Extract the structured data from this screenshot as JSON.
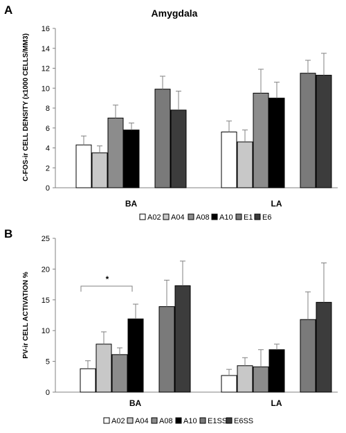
{
  "chart_data": [
    {
      "type": "bar",
      "panel_label": "A",
      "title": "Amygdala",
      "ylabel": "C-FOS-ir CELL DENSITY (x1000 CELLS/MM3)",
      "xlabel": "",
      "ylim": [
        0,
        16
      ],
      "yticks": [
        0,
        2,
        4,
        6,
        8,
        10,
        12,
        14,
        16
      ],
      "categories": [
        "BA",
        "LA"
      ],
      "grid": false,
      "legend_position": "bottom",
      "series": [
        {
          "name": "A02",
          "color": "#ffffff",
          "values": [
            4.3,
            5.6
          ],
          "errors": [
            0.9,
            1.1
          ]
        },
        {
          "name": "A04",
          "color": "#c8c8c8",
          "values": [
            3.5,
            4.6
          ],
          "errors": [
            0.7,
            1.2
          ]
        },
        {
          "name": "A08",
          "color": "#8c8c8c",
          "values": [
            7.0,
            9.5
          ],
          "errors": [
            1.3,
            2.4
          ]
        },
        {
          "name": "A10",
          "color": "#000000",
          "values": [
            5.8,
            9.0
          ],
          "errors": [
            0.7,
            1.6
          ]
        },
        {
          "name": "E1",
          "color": "#7a7a7a",
          "values": [
            9.9,
            11.5
          ],
          "errors": [
            1.3,
            1.3
          ]
        },
        {
          "name": "E6",
          "color": "#3c3c3c",
          "values": [
            7.8,
            11.3
          ],
          "errors": [
            1.9,
            2.2
          ]
        }
      ]
    },
    {
      "type": "bar",
      "panel_label": "B",
      "title": "",
      "ylabel": "PV-ir CELL ACTIVATION %",
      "xlabel": "",
      "ylim": [
        0,
        25
      ],
      "yticks": [
        0,
        5,
        10,
        15,
        20,
        25
      ],
      "categories": [
        "BA",
        "LA"
      ],
      "grid": false,
      "legend_position": "bottom",
      "annotation": "*",
      "series": [
        {
          "name": "A02",
          "color": "#ffffff",
          "values": [
            3.8,
            2.7
          ],
          "errors": [
            1.3,
            1.0
          ]
        },
        {
          "name": "A04",
          "color": "#c8c8c8",
          "values": [
            7.8,
            4.3
          ],
          "errors": [
            2.0,
            1.3
          ]
        },
        {
          "name": "A08",
          "color": "#8c8c8c",
          "values": [
            6.1,
            4.1
          ],
          "errors": [
            1.1,
            2.8
          ]
        },
        {
          "name": "A10",
          "color": "#000000",
          "values": [
            11.9,
            6.9
          ],
          "errors": [
            2.4,
            0.9
          ]
        },
        {
          "name": "E1SS",
          "color": "#7a7a7a",
          "values": [
            13.9,
            11.8
          ],
          "errors": [
            4.3,
            4.5
          ]
        },
        {
          "name": "E6SS",
          "color": "#3c3c3c",
          "values": [
            17.3,
            14.6
          ],
          "errors": [
            4.0,
            6.4
          ]
        }
      ]
    }
  ]
}
